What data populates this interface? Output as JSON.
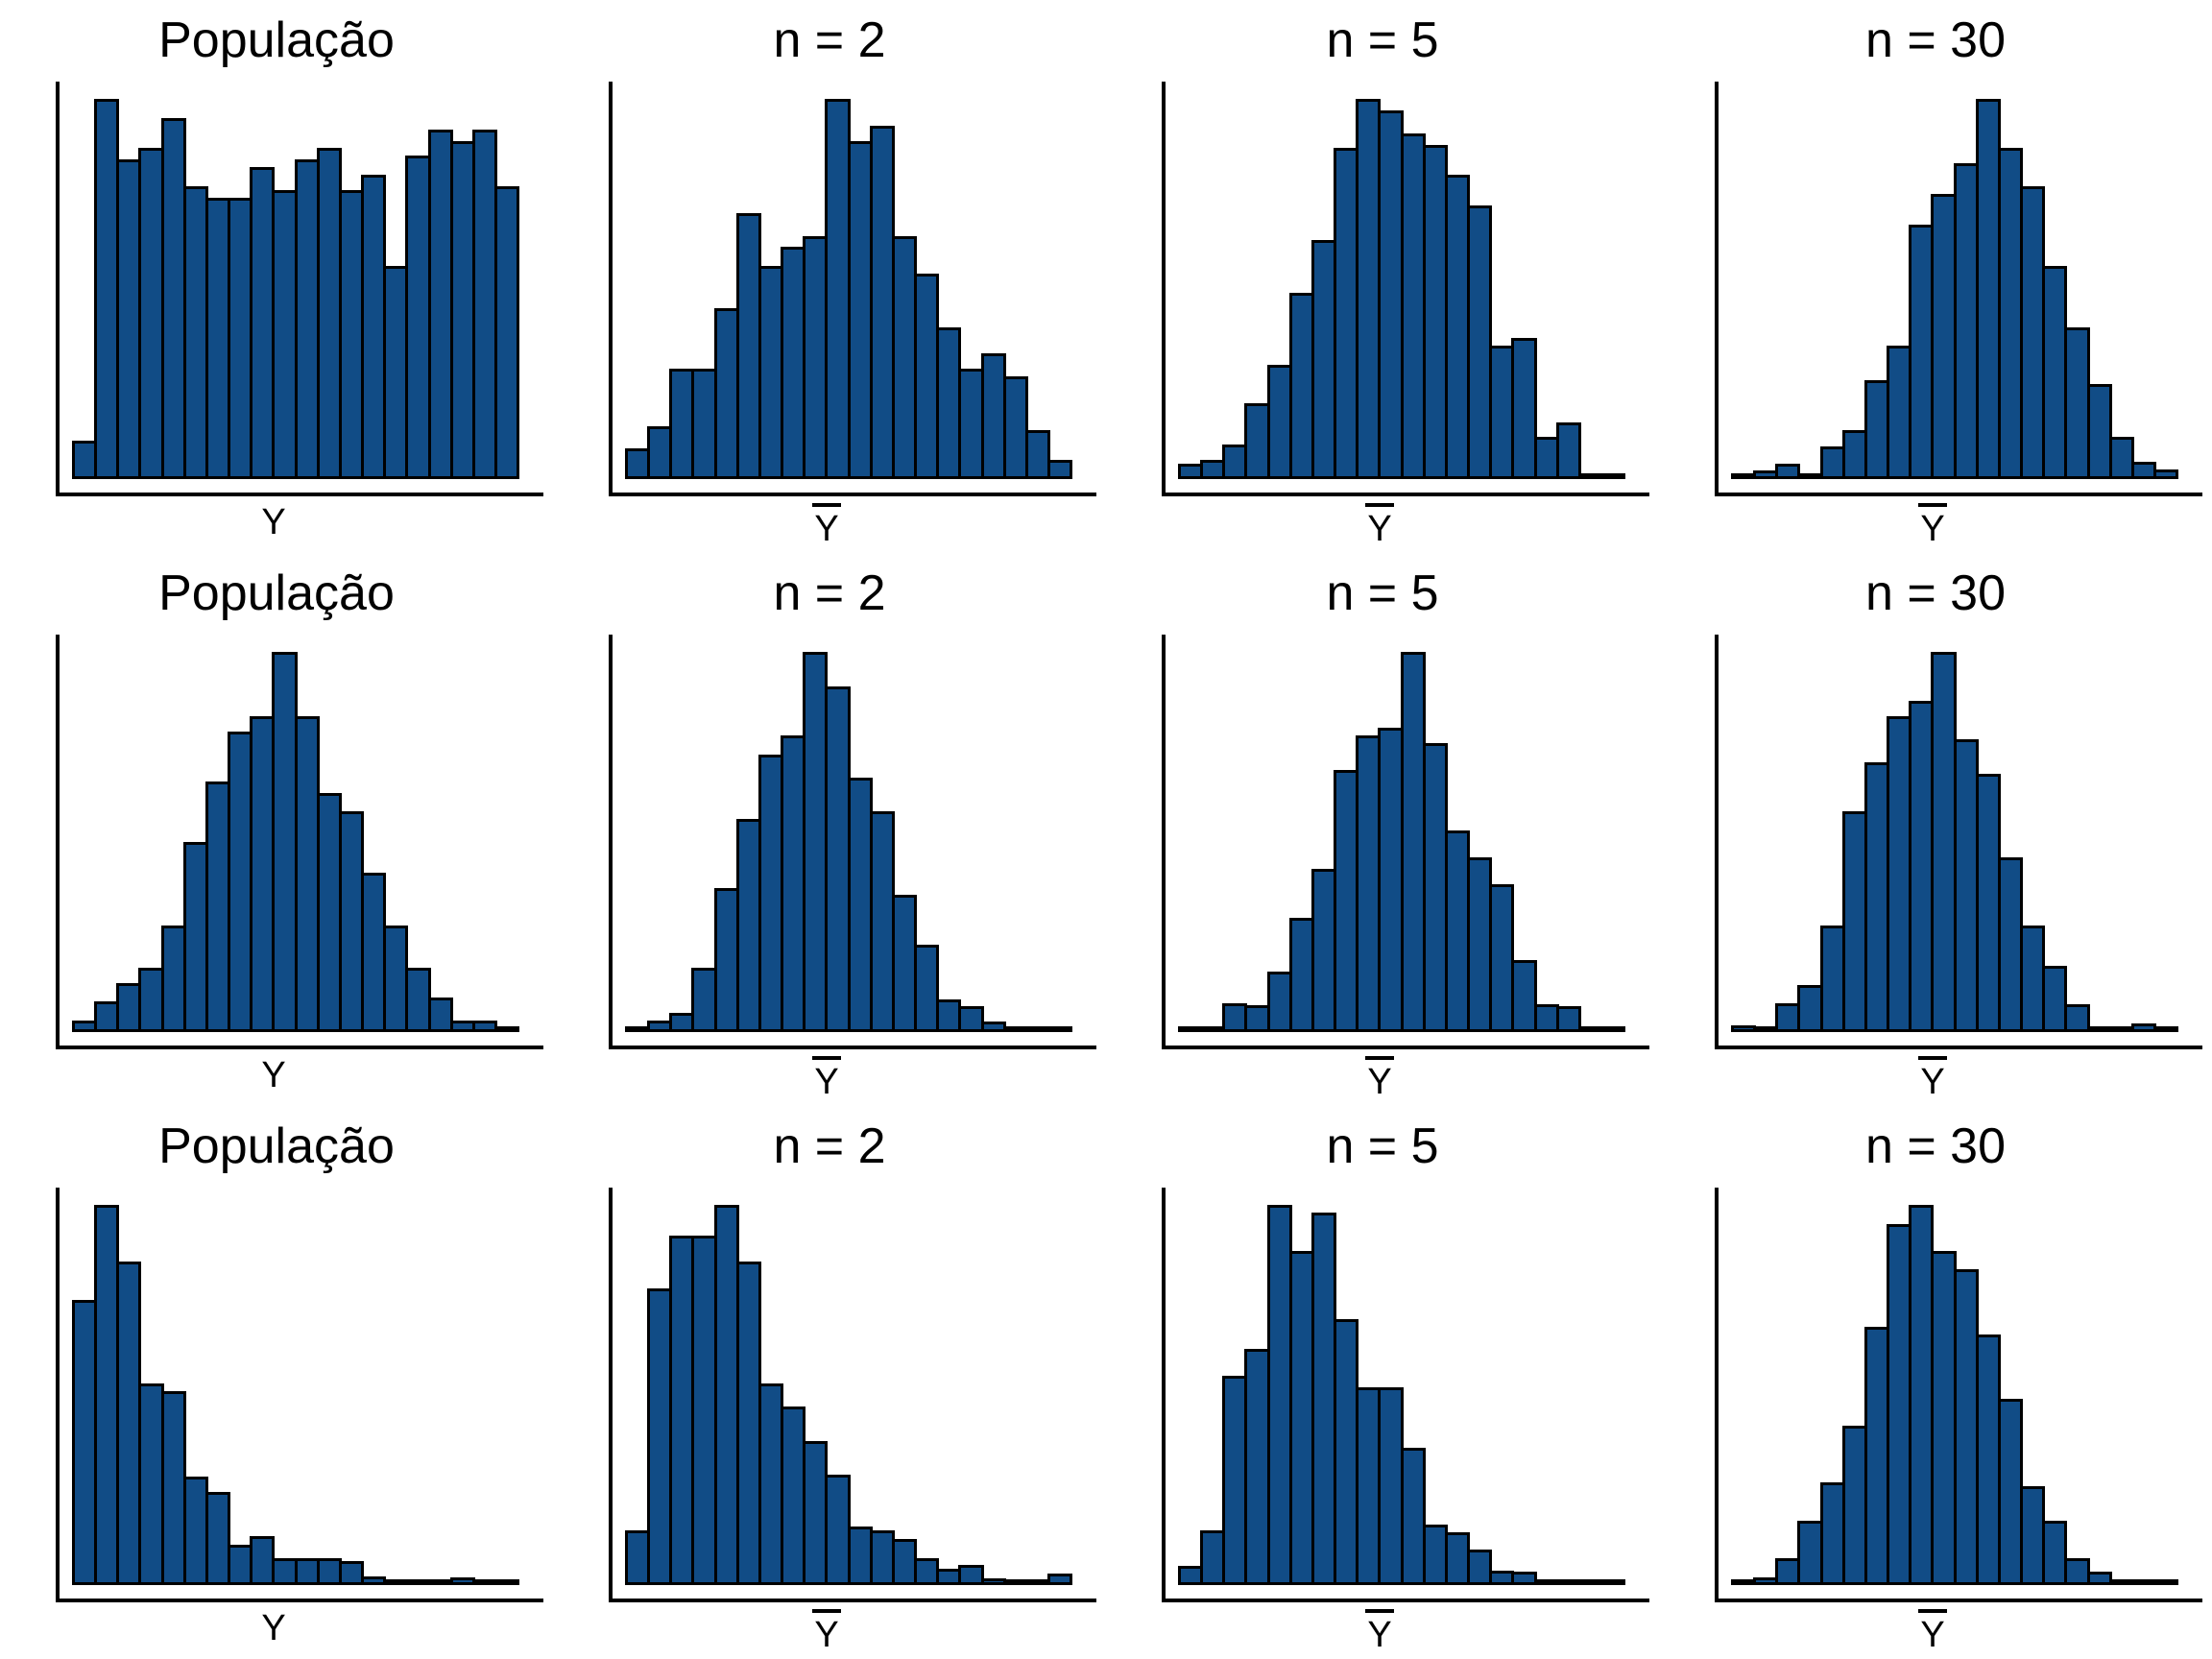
{
  "figure": {
    "background": "#ffffff",
    "grid_rows": 3,
    "grid_cols": 4
  },
  "colors": {
    "bar_fill": "#114C86",
    "bar_edge": "#000000",
    "axis": "#000000",
    "text": "#000000"
  },
  "chart_data": [
    {
      "type": "bar",
      "row": 0,
      "col": 0,
      "title": "População",
      "xlabel": "Y",
      "xlabel_overline": false,
      "ylabel": "",
      "bins": 20,
      "grid": false,
      "axis_ticks": false,
      "ylim": [
        0,
        1
      ],
      "values": [
        0.1,
        1.0,
        0.84,
        0.87,
        0.95,
        0.77,
        0.74,
        0.74,
        0.82,
        0.76,
        0.84,
        0.87,
        0.76,
        0.8,
        0.56,
        0.85,
        0.92,
        0.89,
        0.92,
        0.77
      ]
    },
    {
      "type": "bar",
      "row": 0,
      "col": 1,
      "title": "n = 2",
      "xlabel": "Y",
      "xlabel_overline": true,
      "ylabel": "",
      "bins": 20,
      "grid": false,
      "axis_ticks": false,
      "ylim": [
        0,
        1
      ],
      "values": [
        0.08,
        0.14,
        0.29,
        0.29,
        0.45,
        0.7,
        0.56,
        0.61,
        0.64,
        1.0,
        0.89,
        0.93,
        0.64,
        0.54,
        0.4,
        0.29,
        0.33,
        0.27,
        0.13,
        0.05
      ]
    },
    {
      "type": "bar",
      "row": 0,
      "col": 2,
      "title": "n = 5",
      "xlabel": "Y",
      "xlabel_overline": true,
      "ylabel": "",
      "bins": 20,
      "grid": false,
      "axis_ticks": false,
      "ylim": [
        0,
        1
      ],
      "values": [
        0.04,
        0.05,
        0.09,
        0.2,
        0.3,
        0.49,
        0.63,
        0.87,
        1.0,
        0.97,
        0.91,
        0.88,
        0.8,
        0.72,
        0.35,
        0.37,
        0.11,
        0.15,
        0.008,
        0.008
      ]
    },
    {
      "type": "bar",
      "row": 0,
      "col": 3,
      "title": "n = 30",
      "xlabel": "Y",
      "xlabel_overline": true,
      "ylabel": "",
      "bins": 20,
      "grid": false,
      "axis_ticks": false,
      "ylim": [
        0,
        1
      ],
      "values": [
        0.005,
        0.024,
        0.04,
        0.005,
        0.085,
        0.13,
        0.26,
        0.35,
        0.67,
        0.75,
        0.83,
        1.0,
        0.87,
        0.77,
        0.56,
        0.4,
        0.25,
        0.11,
        0.046,
        0.025
      ]
    },
    {
      "type": "bar",
      "row": 1,
      "col": 0,
      "title": "População",
      "xlabel": "Y",
      "xlabel_overline": false,
      "ylabel": "",
      "bins": 20,
      "grid": false,
      "axis_ticks": false,
      "ylim": [
        0,
        1
      ],
      "values": [
        0.03,
        0.08,
        0.13,
        0.17,
        0.28,
        0.5,
        0.66,
        0.79,
        0.83,
        1.0,
        0.83,
        0.63,
        0.58,
        0.42,
        0.28,
        0.17,
        0.09,
        0.03,
        0.03,
        0.005
      ]
    },
    {
      "type": "bar",
      "row": 1,
      "col": 1,
      "title": "n = 2",
      "xlabel": "Y",
      "xlabel_overline": true,
      "ylabel": "",
      "bins": 20,
      "grid": false,
      "axis_ticks": false,
      "ylim": [
        0,
        1
      ],
      "values": [
        0.005,
        0.03,
        0.05,
        0.17,
        0.38,
        0.56,
        0.73,
        0.78,
        1.0,
        0.91,
        0.67,
        0.58,
        0.36,
        0.23,
        0.086,
        0.067,
        0.028,
        0.005,
        0.003,
        0.005
      ]
    },
    {
      "type": "bar",
      "row": 1,
      "col": 2,
      "title": "n = 5",
      "xlabel": "Y",
      "xlabel_overline": true,
      "ylabel": "",
      "bins": 20,
      "grid": false,
      "axis_ticks": false,
      "ylim": [
        0,
        1
      ],
      "values": [
        0.005,
        0.016,
        0.076,
        0.07,
        0.16,
        0.3,
        0.43,
        0.69,
        0.78,
        0.8,
        1.0,
        0.76,
        0.53,
        0.46,
        0.39,
        0.19,
        0.074,
        0.067,
        0.005,
        0.003
      ]
    },
    {
      "type": "bar",
      "row": 1,
      "col": 3,
      "title": "n = 30",
      "xlabel": "Y",
      "xlabel_overline": true,
      "ylabel": "",
      "bins": 20,
      "grid": false,
      "axis_ticks": false,
      "ylim": [
        0,
        1
      ],
      "values": [
        0.017,
        0.012,
        0.076,
        0.125,
        0.28,
        0.58,
        0.71,
        0.83,
        0.87,
        1.0,
        0.77,
        0.68,
        0.46,
        0.28,
        0.175,
        0.074,
        0.016,
        0.008,
        0.023,
        0.008
      ]
    },
    {
      "type": "bar",
      "row": 2,
      "col": 0,
      "title": "População",
      "xlabel": "Y",
      "xlabel_overline": false,
      "ylabel": "",
      "bins": 20,
      "grid": false,
      "axis_ticks": false,
      "ylim": [
        0,
        1
      ],
      "values": [
        0.75,
        1.0,
        0.85,
        0.53,
        0.51,
        0.285,
        0.245,
        0.105,
        0.13,
        0.072,
        0.072,
        0.072,
        0.062,
        0.024,
        0.015,
        0.015,
        0.01,
        0.02,
        0.002,
        0.008
      ]
    },
    {
      "type": "bar",
      "row": 2,
      "col": 1,
      "title": "n = 2",
      "xlabel": "Y",
      "xlabel_overline": true,
      "ylabel": "",
      "bins": 20,
      "grid": false,
      "axis_ticks": false,
      "ylim": [
        0,
        1
      ],
      "values": [
        0.145,
        0.78,
        0.92,
        0.92,
        1.0,
        0.85,
        0.53,
        0.47,
        0.38,
        0.29,
        0.155,
        0.145,
        0.12,
        0.07,
        0.042,
        0.053,
        0.018,
        0.009,
        0.013,
        0.03
      ]
    },
    {
      "type": "bar",
      "row": 2,
      "col": 2,
      "title": "n = 5",
      "xlabel": "Y",
      "xlabel_overline": true,
      "ylabel": "",
      "bins": 20,
      "grid": false,
      "axis_ticks": false,
      "ylim": [
        0,
        1
      ],
      "values": [
        0.05,
        0.145,
        0.55,
        0.62,
        1.0,
        0.88,
        0.98,
        0.7,
        0.52,
        0.52,
        0.36,
        0.16,
        0.14,
        0.093,
        0.037,
        0.035,
        0.011,
        0.005,
        0.003,
        0.007
      ]
    },
    {
      "type": "bar",
      "row": 2,
      "col": 3,
      "title": "n = 30",
      "xlabel": "Y",
      "xlabel_overline": true,
      "ylabel": "",
      "bins": 20,
      "grid": false,
      "axis_ticks": false,
      "ylim": [
        0,
        1
      ],
      "values": [
        0.008,
        0.019,
        0.07,
        0.17,
        0.27,
        0.42,
        0.68,
        0.95,
        1.0,
        0.88,
        0.83,
        0.66,
        0.49,
        0.26,
        0.17,
        0.07,
        0.035,
        0.014,
        0.005,
        0.012
      ]
    }
  ]
}
